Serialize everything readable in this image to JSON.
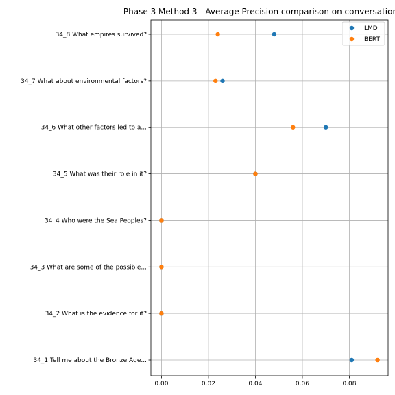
{
  "chart_data": {
    "type": "scatter",
    "title": "Phase 3 Method 3 - Average Precision comparison on conversation",
    "xlabel": "",
    "ylabel": "",
    "xlim": [
      -0.0045,
      0.0965
    ],
    "xticks": [
      0.0,
      0.02,
      0.04,
      0.06,
      0.08
    ],
    "xtick_labels": [
      "0.00",
      "0.02",
      "0.04",
      "0.06",
      "0.08"
    ],
    "categories": [
      "34_1 Tell me about the Bronze Age...",
      "34_2 What is the evidence for it?",
      "34_3 What are some of the possible...",
      "34_4 Who were the Sea Peoples?",
      "34_5 What was their role in it?",
      "34_6 What other factors led to a...",
      "34_7 What about environmental factors?",
      "34_8 What empires survived?"
    ],
    "series": [
      {
        "name": "LMD",
        "color": "#1f77b4",
        "values": [
          0.081,
          0.0,
          0.0,
          0.0,
          0.04,
          0.07,
          0.026,
          0.048
        ]
      },
      {
        "name": "BERT",
        "color": "#ff7f0e",
        "values": [
          0.092,
          0.0,
          0.0,
          0.0,
          0.04,
          0.056,
          0.023,
          0.024
        ]
      }
    ],
    "grid": true,
    "legend_position": "top-right"
  }
}
